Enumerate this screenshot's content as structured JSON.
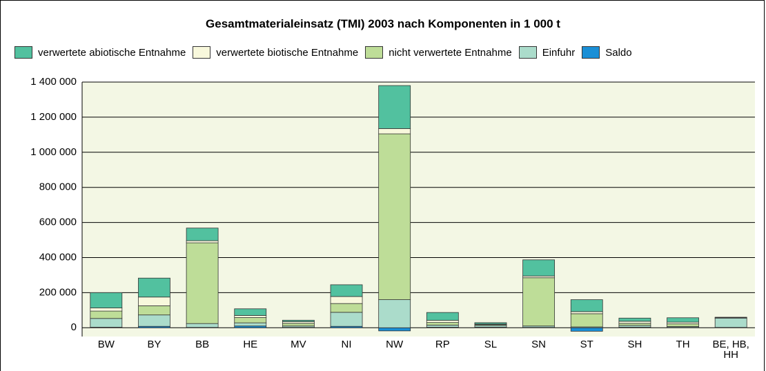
{
  "chart_data": {
    "type": "bar",
    "stacked": true,
    "title": "Gesamtmaterialeinsatz (TMI) 2003 nach Komponenten in 1 000 t",
    "categories": [
      "BW",
      "BY",
      "BB",
      "HE",
      "MV",
      "NI",
      "NW",
      "RP",
      "SL",
      "SN",
      "ST",
      "SH",
      "TH",
      "BE, HB, HH"
    ],
    "series": [
      {
        "name": "verwertete abiotische Entnahme",
        "color": "#52c19f",
        "values": [
          87000,
          108000,
          72000,
          38000,
          8000,
          67000,
          245000,
          45000,
          8000,
          92000,
          68000,
          18000,
          25000,
          3000
        ]
      },
      {
        "name": "verwertete biotische Entnahme",
        "color": "#f8f8dc",
        "values": [
          18000,
          50000,
          12000,
          12000,
          10000,
          40000,
          30000,
          12000,
          3000,
          10000,
          12000,
          12000,
          10000,
          1000
        ]
      },
      {
        "name": "nicht verwertete Entnahme",
        "color": "#bedd98",
        "values": [
          42000,
          52000,
          460000,
          30000,
          15000,
          50000,
          945000,
          15000,
          5000,
          275000,
          75000,
          12000,
          15000,
          1000
        ]
      },
      {
        "name": "Einfuhr",
        "color": "#abdccb",
        "values": [
          50000,
          65000,
          22000,
          18000,
          8000,
          80000,
          160000,
          12000,
          10000,
          8000,
          5000,
          10000,
          5000,
          53000
        ]
      },
      {
        "name": "Saldo",
        "color": "#1a8fd6",
        "values": [
          3000,
          8000,
          2000,
          10000,
          2000,
          8000,
          -18000,
          3000,
          3000,
          2000,
          -20000,
          3000,
          2000,
          2000
        ]
      }
    ],
    "ylim": [
      -50000,
      1400000
    ],
    "yticks": [
      0,
      {
        "value": 200000,
        "label": "200 000"
      },
      {
        "value": 400000,
        "label": "400 000"
      },
      {
        "value": 600000,
        "label": "600 000"
      },
      {
        "value": 800000,
        "label": "800 000"
      },
      {
        "value": 1000000,
        "label": "1 000 000"
      },
      {
        "value": 1200000,
        "label": "1 200 000"
      },
      {
        "value": 1400000,
        "label": "1 400 000"
      }
    ],
    "grid": true
  }
}
